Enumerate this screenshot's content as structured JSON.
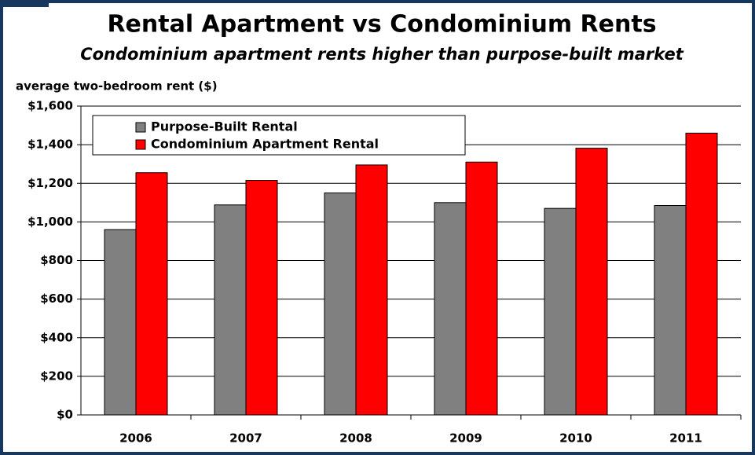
{
  "chart_data": {
    "type": "bar",
    "title": "Rental Apartment vs Condominium Rents",
    "subtitle": "Condominium apartment rents higher than purpose-built market",
    "ylabel": "average two-bedroom rent ($)",
    "categories": [
      "2006",
      "2007",
      "2008",
      "2009",
      "2010",
      "2011"
    ],
    "series": [
      {
        "name": "Purpose-Built Rental",
        "color": "#808080",
        "values": [
          960,
          1088,
          1150,
          1100,
          1070,
          1085
        ]
      },
      {
        "name": "Condominium Apartment Rental",
        "color": "#ff0000",
        "values": [
          1255,
          1215,
          1295,
          1310,
          1382,
          1460
        ]
      }
    ],
    "ylim": [
      0,
      1600
    ],
    "yticks": [
      {
        "value": 0,
        "label": "$0"
      },
      {
        "value": 200,
        "label": "$200"
      },
      {
        "value": 400,
        "label": "$400"
      },
      {
        "value": 600,
        "label": "$600"
      },
      {
        "value": 800,
        "label": "$800"
      },
      {
        "value": 1000,
        "label": "$1,000"
      },
      {
        "value": 1200,
        "label": "$1,200"
      },
      {
        "value": 1400,
        "label": "$1,400"
      },
      {
        "value": 1600,
        "label": "$1,600"
      }
    ],
    "grid": true,
    "legend": "top-left"
  }
}
